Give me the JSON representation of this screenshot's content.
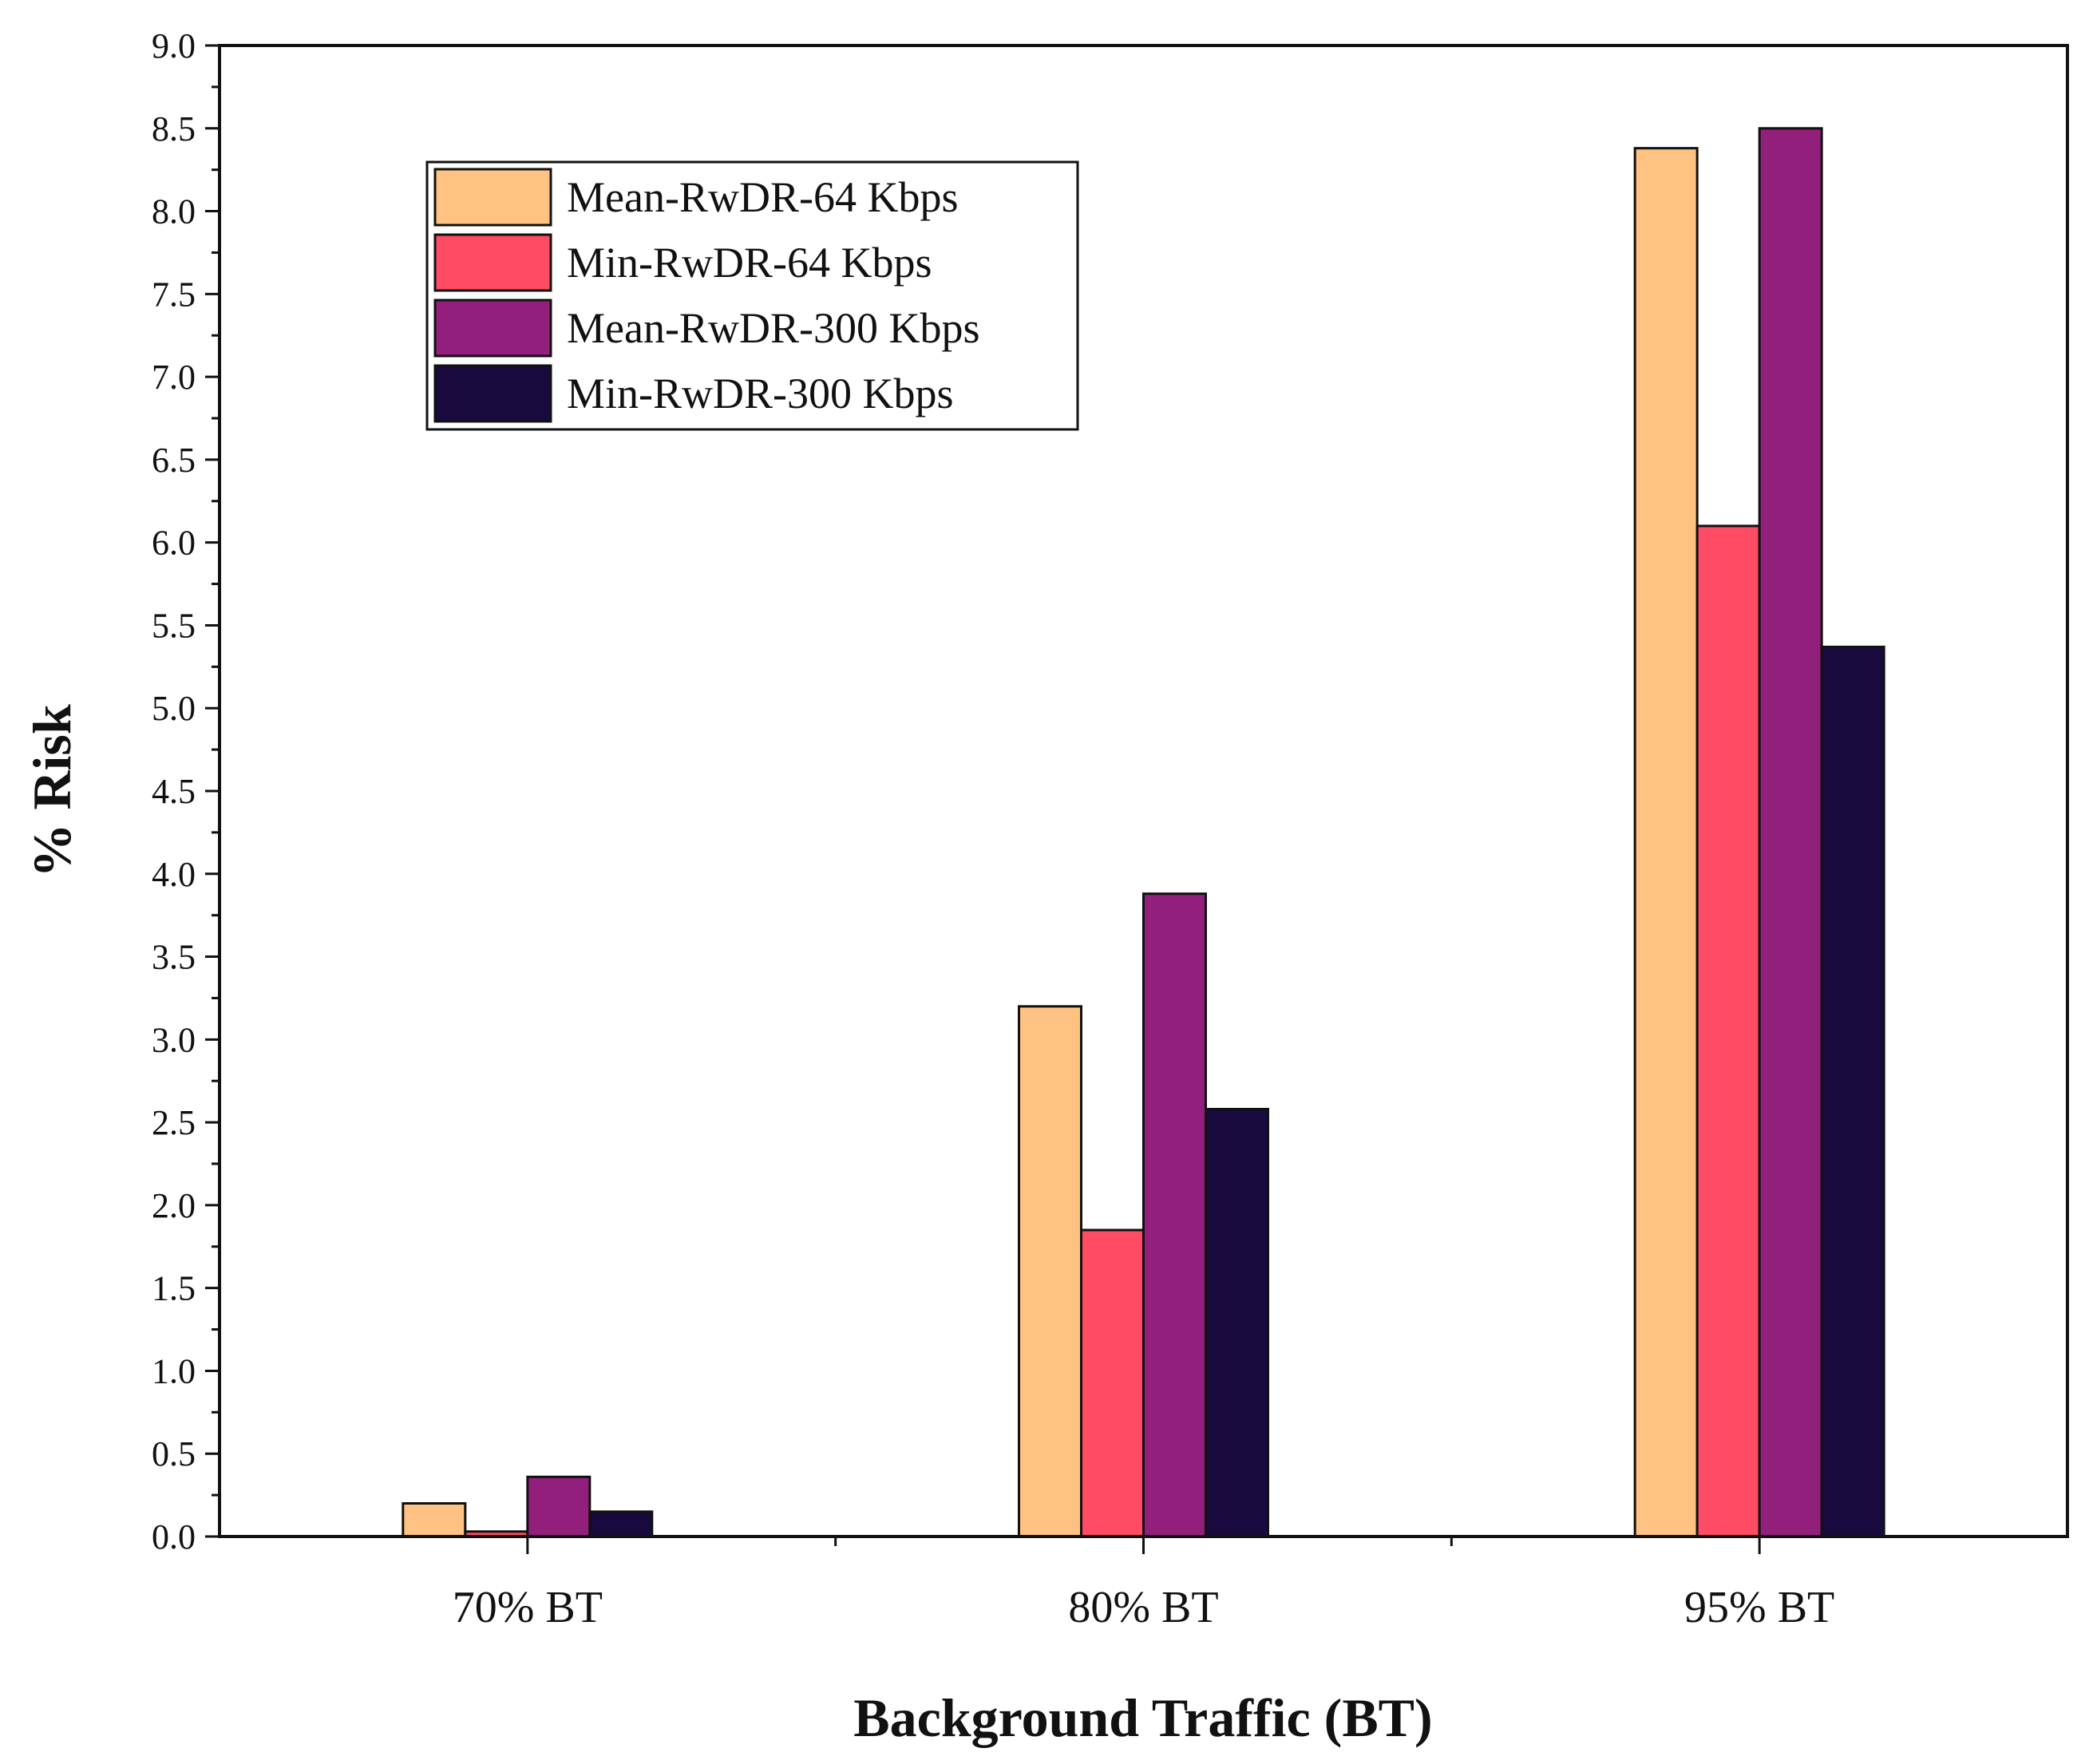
{
  "chart_data": {
    "type": "bar",
    "title": "",
    "xlabel": "Background Traffic (BT)",
    "ylabel": "% Risk",
    "categories": [
      "70% BT",
      "80% BT",
      "95% BT"
    ],
    "ylim": [
      0,
      9.0
    ],
    "yticks": [
      "0.0",
      "0.5",
      "1.0",
      "1.5",
      "2.0",
      "2.5",
      "3.0",
      "3.5",
      "4.0",
      "4.5",
      "5.0",
      "5.5",
      "6.0",
      "6.5",
      "7.0",
      "7.5",
      "8.0",
      "8.5",
      "9.0"
    ],
    "legend_position": "top-left",
    "grid": false,
    "series": [
      {
        "name": "Mean-RwDR-64 Kbps",
        "color": "#FFC283",
        "values": [
          0.2,
          3.2,
          8.38
        ]
      },
      {
        "name": "Min-RwDR-64 Kbps",
        "color": "#FF4B63",
        "values": [
          0.03,
          1.85,
          6.1
        ]
      },
      {
        "name": "Mean-RwDR-300 Kbps",
        "color": "#931F7C",
        "values": [
          0.36,
          3.88,
          8.5
        ]
      },
      {
        "name": "Min-RwDR-300 Kbps",
        "color": "#180A3E",
        "values": [
          0.15,
          2.58,
          5.37
        ]
      }
    ]
  }
}
